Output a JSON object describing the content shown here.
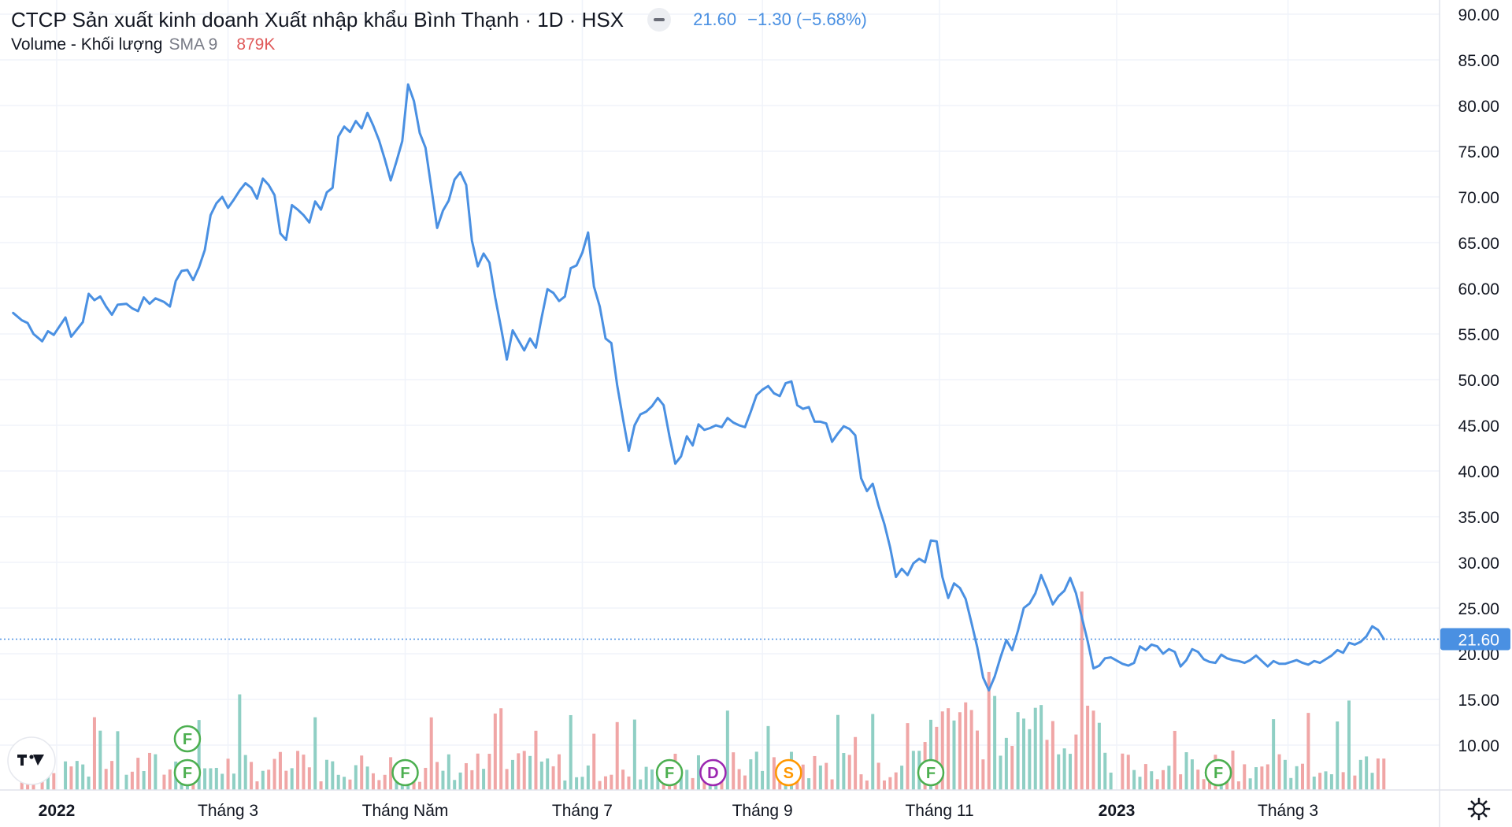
{
  "legend": {
    "title": "CTCP Sản xuất kinh doanh Xuất nhập khẩu Bình Thạnh · 1D · HSX",
    "price": "21.60",
    "change": "−1.30 (−5.68%)",
    "volume_label": "Volume - Khối lượng",
    "volume_sma": "SMA 9",
    "volume_value": "879K"
  },
  "price_axis": {
    "ticks": [
      "90.00",
      "85.00",
      "80.00",
      "75.00",
      "70.00",
      "65.00",
      "60.00",
      "55.00",
      "50.00",
      "45.00",
      "40.00",
      "35.00",
      "30.00",
      "25.00",
      "20.00",
      "15.00",
      "10.00"
    ],
    "last_price_label": "21.60"
  },
  "time_axis": {
    "labels": [
      {
        "text": "2022",
        "bold": true,
        "date": "2022-01-01"
      },
      {
        "text": "Tháng 3",
        "bold": false,
        "date": "2022-03-01"
      },
      {
        "text": "Tháng Năm",
        "bold": false,
        "date": "2022-05-01"
      },
      {
        "text": "Tháng 7",
        "bold": false,
        "date": "2022-07-01"
      },
      {
        "text": "Tháng 9",
        "bold": false,
        "date": "2022-09-01"
      },
      {
        "text": "Tháng 11",
        "bold": false,
        "date": "2022-11-01"
      },
      {
        "text": "2023",
        "bold": true,
        "date": "2023-01-01"
      },
      {
        "text": "Tháng 3",
        "bold": false,
        "date": "2023-03-01"
      }
    ]
  },
  "events": [
    {
      "letter": "F",
      "color": "#4caf50",
      "date": "2022-02-15",
      "row": 2
    },
    {
      "letter": "F",
      "color": "#4caf50",
      "date": "2022-02-15",
      "row": 1
    },
    {
      "letter": "F",
      "color": "#4caf50",
      "date": "2022-05-01",
      "row": 1
    },
    {
      "letter": "F",
      "color": "#4caf50",
      "date": "2022-07-31",
      "row": 1
    },
    {
      "letter": "D",
      "color": "#9c27b0",
      "date": "2022-08-15",
      "row": 1
    },
    {
      "letter": "S",
      "color": "#ff9800",
      "date": "2022-09-10",
      "row": 1
    },
    {
      "letter": "F",
      "color": "#4caf50",
      "date": "2022-10-29",
      "row": 1
    },
    {
      "letter": "F",
      "color": "#4caf50",
      "date": "2023-02-05",
      "row": 1
    },
    {
      "letter": "F",
      "color": "#4caf50",
      "date": "2023-02-05",
      "row": 1
    }
  ],
  "colors": {
    "line": "#4a90e2",
    "vol_up": "#8fcfc4",
    "vol_down": "#f0a6a6",
    "grid": "#f0f3fa",
    "axis_text": "#131722",
    "last_price_bg": "#4a90e2"
  },
  "chart_data": {
    "type": "line",
    "x_type": "date",
    "ylim": [
      5,
      92.5
    ],
    "grid": true,
    "last_price": 21.6,
    "series": [
      {
        "points": [
          [
            "2021-12-17",
            57.3
          ],
          [
            "2021-12-20",
            56.5
          ],
          [
            "2021-12-22",
            56.2
          ],
          [
            "2021-12-24",
            55.0
          ],
          [
            "2021-12-27",
            54.2
          ],
          [
            "2021-12-29",
            55.3
          ],
          [
            "2021-12-31",
            54.9
          ],
          [
            "2022-01-04",
            56.8
          ],
          [
            "2022-01-06",
            54.7
          ],
          [
            "2022-01-08",
            55.5
          ],
          [
            "2022-01-10",
            56.3
          ],
          [
            "2022-01-12",
            59.4
          ],
          [
            "2022-01-14",
            58.7
          ],
          [
            "2022-01-16",
            59.1
          ],
          [
            "2022-01-18",
            58.0
          ],
          [
            "2022-01-20",
            57.1
          ],
          [
            "2022-01-22",
            58.2
          ],
          [
            "2022-01-25",
            58.3
          ],
          [
            "2022-01-27",
            57.8
          ],
          [
            "2022-01-29",
            57.5
          ],
          [
            "2022-01-31",
            59.0
          ],
          [
            "2022-02-02",
            58.3
          ],
          [
            "2022-02-04",
            58.9
          ],
          [
            "2022-02-07",
            58.5
          ],
          [
            "2022-02-09",
            58.0
          ],
          [
            "2022-02-11",
            60.8
          ],
          [
            "2022-02-13",
            61.9
          ],
          [
            "2022-02-15",
            62.0
          ],
          [
            "2022-02-17",
            60.9
          ],
          [
            "2022-02-19",
            62.3
          ],
          [
            "2022-02-21",
            64.2
          ],
          [
            "2022-02-23",
            68.0
          ],
          [
            "2022-02-25",
            69.3
          ],
          [
            "2022-02-27",
            70.0
          ],
          [
            "2022-03-01",
            68.8
          ],
          [
            "2022-03-03",
            69.7
          ],
          [
            "2022-03-05",
            70.7
          ],
          [
            "2022-03-07",
            71.5
          ],
          [
            "2022-03-09",
            71.0
          ],
          [
            "2022-03-11",
            69.8
          ],
          [
            "2022-03-13",
            72.0
          ],
          [
            "2022-03-15",
            71.3
          ],
          [
            "2022-03-17",
            70.2
          ],
          [
            "2022-03-19",
            66.0
          ],
          [
            "2022-03-21",
            65.3
          ],
          [
            "2022-03-23",
            69.1
          ],
          [
            "2022-03-25",
            68.6
          ],
          [
            "2022-03-27",
            68.0
          ],
          [
            "2022-03-29",
            67.2
          ],
          [
            "2022-03-31",
            69.5
          ],
          [
            "2022-04-02",
            68.6
          ],
          [
            "2022-04-04",
            70.5
          ],
          [
            "2022-04-06",
            71.0
          ],
          [
            "2022-04-08",
            76.6
          ],
          [
            "2022-04-10",
            77.7
          ],
          [
            "2022-04-12",
            77.1
          ],
          [
            "2022-04-14",
            78.3
          ],
          [
            "2022-04-16",
            77.5
          ],
          [
            "2022-04-18",
            79.2
          ],
          [
            "2022-04-20",
            77.8
          ],
          [
            "2022-04-22",
            76.2
          ],
          [
            "2022-04-24",
            74.1
          ],
          [
            "2022-04-26",
            71.8
          ],
          [
            "2022-04-28",
            73.9
          ],
          [
            "2022-04-30",
            76.1
          ],
          [
            "2022-05-02",
            82.3
          ],
          [
            "2022-05-04",
            80.5
          ],
          [
            "2022-05-06",
            77.0
          ],
          [
            "2022-05-08",
            75.4
          ],
          [
            "2022-05-10",
            71.0
          ],
          [
            "2022-05-12",
            66.6
          ],
          [
            "2022-05-14",
            68.5
          ],
          [
            "2022-05-16",
            69.6
          ],
          [
            "2022-05-18",
            71.9
          ],
          [
            "2022-05-20",
            72.7
          ],
          [
            "2022-05-22",
            71.3
          ],
          [
            "2022-05-24",
            65.2
          ],
          [
            "2022-05-26",
            62.4
          ],
          [
            "2022-05-28",
            63.8
          ],
          [
            "2022-05-30",
            62.8
          ],
          [
            "2022-06-01",
            59.0
          ],
          [
            "2022-06-03",
            55.7
          ],
          [
            "2022-06-05",
            52.2
          ],
          [
            "2022-06-07",
            55.4
          ],
          [
            "2022-06-09",
            54.3
          ],
          [
            "2022-06-11",
            53.2
          ],
          [
            "2022-06-13",
            54.5
          ],
          [
            "2022-06-15",
            53.5
          ],
          [
            "2022-06-17",
            56.8
          ],
          [
            "2022-06-19",
            59.9
          ],
          [
            "2022-06-21",
            59.5
          ],
          [
            "2022-06-23",
            58.6
          ],
          [
            "2022-06-25",
            59.1
          ],
          [
            "2022-06-27",
            62.2
          ],
          [
            "2022-06-29",
            62.5
          ],
          [
            "2022-07-01",
            63.9
          ],
          [
            "2022-07-03",
            66.1
          ],
          [
            "2022-07-05",
            60.2
          ],
          [
            "2022-07-07",
            58.0
          ],
          [
            "2022-07-09",
            54.5
          ],
          [
            "2022-07-11",
            54.0
          ],
          [
            "2022-07-13",
            49.4
          ],
          [
            "2022-07-15",
            45.7
          ],
          [
            "2022-07-17",
            42.2
          ],
          [
            "2022-07-19",
            45.0
          ],
          [
            "2022-07-21",
            46.2
          ],
          [
            "2022-07-23",
            46.5
          ],
          [
            "2022-07-25",
            47.1
          ],
          [
            "2022-07-27",
            48.0
          ],
          [
            "2022-07-29",
            47.2
          ],
          [
            "2022-07-31",
            43.8
          ],
          [
            "2022-08-02",
            40.8
          ],
          [
            "2022-08-04",
            41.6
          ],
          [
            "2022-08-06",
            43.8
          ],
          [
            "2022-08-08",
            42.8
          ],
          [
            "2022-08-10",
            45.1
          ],
          [
            "2022-08-12",
            44.5
          ],
          [
            "2022-08-14",
            44.7
          ],
          [
            "2022-08-16",
            45.0
          ],
          [
            "2022-08-18",
            44.8
          ],
          [
            "2022-08-20",
            45.8
          ],
          [
            "2022-08-22",
            45.3
          ],
          [
            "2022-08-24",
            45.0
          ],
          [
            "2022-08-26",
            44.8
          ],
          [
            "2022-08-28",
            46.5
          ],
          [
            "2022-08-30",
            48.3
          ],
          [
            "2022-09-01",
            48.9
          ],
          [
            "2022-09-03",
            49.3
          ],
          [
            "2022-09-05",
            48.5
          ],
          [
            "2022-09-07",
            48.2
          ],
          [
            "2022-09-09",
            49.6
          ],
          [
            "2022-09-11",
            49.8
          ],
          [
            "2022-09-13",
            47.2
          ],
          [
            "2022-09-15",
            46.8
          ],
          [
            "2022-09-17",
            47.0
          ],
          [
            "2022-09-19",
            45.4
          ],
          [
            "2022-09-21",
            45.4
          ],
          [
            "2022-09-23",
            45.2
          ],
          [
            "2022-09-25",
            43.2
          ],
          [
            "2022-09-27",
            44.1
          ],
          [
            "2022-09-29",
            44.9
          ],
          [
            "2022-10-01",
            44.6
          ],
          [
            "2022-10-03",
            43.9
          ],
          [
            "2022-10-05",
            39.2
          ],
          [
            "2022-10-07",
            37.8
          ],
          [
            "2022-10-09",
            38.6
          ],
          [
            "2022-10-11",
            36.2
          ],
          [
            "2022-10-13",
            34.2
          ],
          [
            "2022-10-15",
            31.6
          ],
          [
            "2022-10-17",
            28.4
          ],
          [
            "2022-10-19",
            29.3
          ],
          [
            "2022-10-21",
            28.6
          ],
          [
            "2022-10-23",
            29.9
          ],
          [
            "2022-10-25",
            30.4
          ],
          [
            "2022-10-27",
            30.0
          ],
          [
            "2022-10-29",
            32.4
          ],
          [
            "2022-10-31",
            32.3
          ],
          [
            "2022-11-02",
            28.4
          ],
          [
            "2022-11-04",
            26.1
          ],
          [
            "2022-11-06",
            27.7
          ],
          [
            "2022-11-08",
            27.2
          ],
          [
            "2022-11-10",
            26.0
          ],
          [
            "2022-11-12",
            23.4
          ],
          [
            "2022-11-14",
            20.7
          ],
          [
            "2022-11-16",
            17.4
          ],
          [
            "2022-11-18",
            16.0
          ],
          [
            "2022-11-20",
            17.5
          ],
          [
            "2022-11-22",
            19.6
          ],
          [
            "2022-11-24",
            21.5
          ],
          [
            "2022-11-26",
            20.4
          ],
          [
            "2022-11-28",
            22.5
          ],
          [
            "2022-11-30",
            25.0
          ],
          [
            "2022-12-02",
            25.5
          ],
          [
            "2022-12-04",
            26.6
          ],
          [
            "2022-12-06",
            28.6
          ],
          [
            "2022-12-08",
            27.1
          ],
          [
            "2022-12-10",
            25.4
          ],
          [
            "2022-12-12",
            26.3
          ],
          [
            "2022-12-14",
            26.9
          ],
          [
            "2022-12-16",
            28.3
          ],
          [
            "2022-12-18",
            26.6
          ],
          [
            "2022-12-20",
            24.0
          ],
          [
            "2022-12-22",
            21.4
          ],
          [
            "2022-12-24",
            18.4
          ],
          [
            "2022-12-26",
            18.7
          ],
          [
            "2022-12-28",
            19.5
          ],
          [
            "2022-12-30",
            19.6
          ],
          [
            "2023-01-03",
            18.9
          ],
          [
            "2023-01-05",
            18.7
          ],
          [
            "2023-01-07",
            19.0
          ],
          [
            "2023-01-09",
            20.8
          ],
          [
            "2023-01-11",
            20.4
          ],
          [
            "2023-01-13",
            21.0
          ],
          [
            "2023-01-15",
            20.8
          ],
          [
            "2023-01-17",
            20.0
          ],
          [
            "2023-01-19",
            20.5
          ],
          [
            "2023-01-21",
            20.2
          ],
          [
            "2023-01-23",
            18.6
          ],
          [
            "2023-01-25",
            19.3
          ],
          [
            "2023-01-27",
            20.5
          ],
          [
            "2023-01-29",
            20.2
          ],
          [
            "2023-01-31",
            19.4
          ],
          [
            "2023-02-02",
            19.1
          ],
          [
            "2023-02-04",
            19.0
          ],
          [
            "2023-02-06",
            19.9
          ],
          [
            "2023-02-08",
            19.5
          ],
          [
            "2023-02-10",
            19.3
          ],
          [
            "2023-02-12",
            19.2
          ],
          [
            "2023-02-14",
            19.0
          ],
          [
            "2023-02-16",
            19.3
          ],
          [
            "2023-02-18",
            19.8
          ],
          [
            "2023-02-20",
            19.2
          ],
          [
            "2023-02-22",
            18.6
          ],
          [
            "2023-02-24",
            19.2
          ],
          [
            "2023-02-26",
            18.9
          ],
          [
            "2023-02-28",
            18.9
          ],
          [
            "2023-03-02",
            19.1
          ],
          [
            "2023-03-04",
            19.3
          ],
          [
            "2023-03-06",
            19.0
          ],
          [
            "2023-03-08",
            18.8
          ],
          [
            "2023-03-10",
            19.2
          ],
          [
            "2023-03-12",
            19.0
          ],
          [
            "2023-03-14",
            19.4
          ],
          [
            "2023-03-16",
            19.8
          ],
          [
            "2023-03-18",
            20.4
          ],
          [
            "2023-03-20",
            20.1
          ],
          [
            "2023-03-22",
            21.2
          ],
          [
            "2023-03-24",
            21.0
          ],
          [
            "2023-03-26",
            21.3
          ],
          [
            "2023-03-28",
            21.9
          ],
          [
            "2023-03-30",
            23.0
          ],
          [
            "2023-04-01",
            22.6
          ],
          [
            "2023-04-03",
            21.6
          ]
        ]
      }
    ]
  }
}
